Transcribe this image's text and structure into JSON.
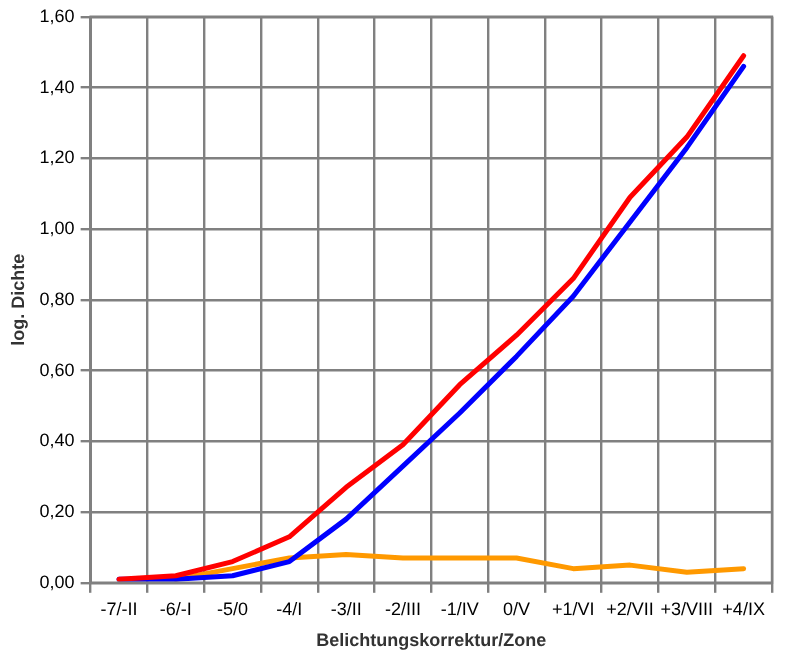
{
  "chart_data": {
    "type": "line",
    "xlabel": "Belichtungskorrektur/Zone",
    "ylabel": "log. Dichte",
    "categories": [
      "-7/-II",
      "-6/-I",
      "-5/0",
      "-4/I",
      "-3/II",
      "-2/III",
      "-1/IV",
      "0/V",
      "+1/VI",
      "+2/VII",
      "+3/VIII",
      "+4/IX"
    ],
    "series": [
      {
        "color": "#ff0000",
        "values": [
          0.01,
          0.02,
          0.06,
          0.13,
          0.27,
          0.39,
          0.56,
          0.7,
          0.86,
          1.09,
          1.26,
          1.49
        ]
      },
      {
        "color": "#0000ff",
        "values": [
          0.01,
          0.01,
          0.02,
          0.06,
          0.18,
          0.33,
          0.48,
          0.64,
          0.81,
          1.02,
          1.23,
          1.46
        ]
      },
      {
        "color": "#ff9900",
        "values": [
          null,
          0.01,
          0.04,
          0.07,
          0.08,
          0.07,
          0.07,
          0.07,
          0.04,
          0.05,
          0.03,
          0.04
        ]
      }
    ],
    "ylim": [
      0,
      1.6
    ],
    "yticks": [
      {
        "value": 0,
        "label": "0,00"
      },
      {
        "value": 0.2,
        "label": "0,20"
      },
      {
        "value": 0.4,
        "label": "0,40"
      },
      {
        "value": 0.6,
        "label": "0,60"
      },
      {
        "value": 0.8,
        "label": "0,80"
      },
      {
        "value": 1,
        "label": "1,00"
      },
      {
        "value": 1.2,
        "label": "1,20"
      },
      {
        "value": 1.4,
        "label": "1,40"
      },
      {
        "value": 1.6,
        "label": "1,60"
      }
    ],
    "grid": true,
    "marker": "none",
    "line_style": "solid",
    "legend": false
  }
}
